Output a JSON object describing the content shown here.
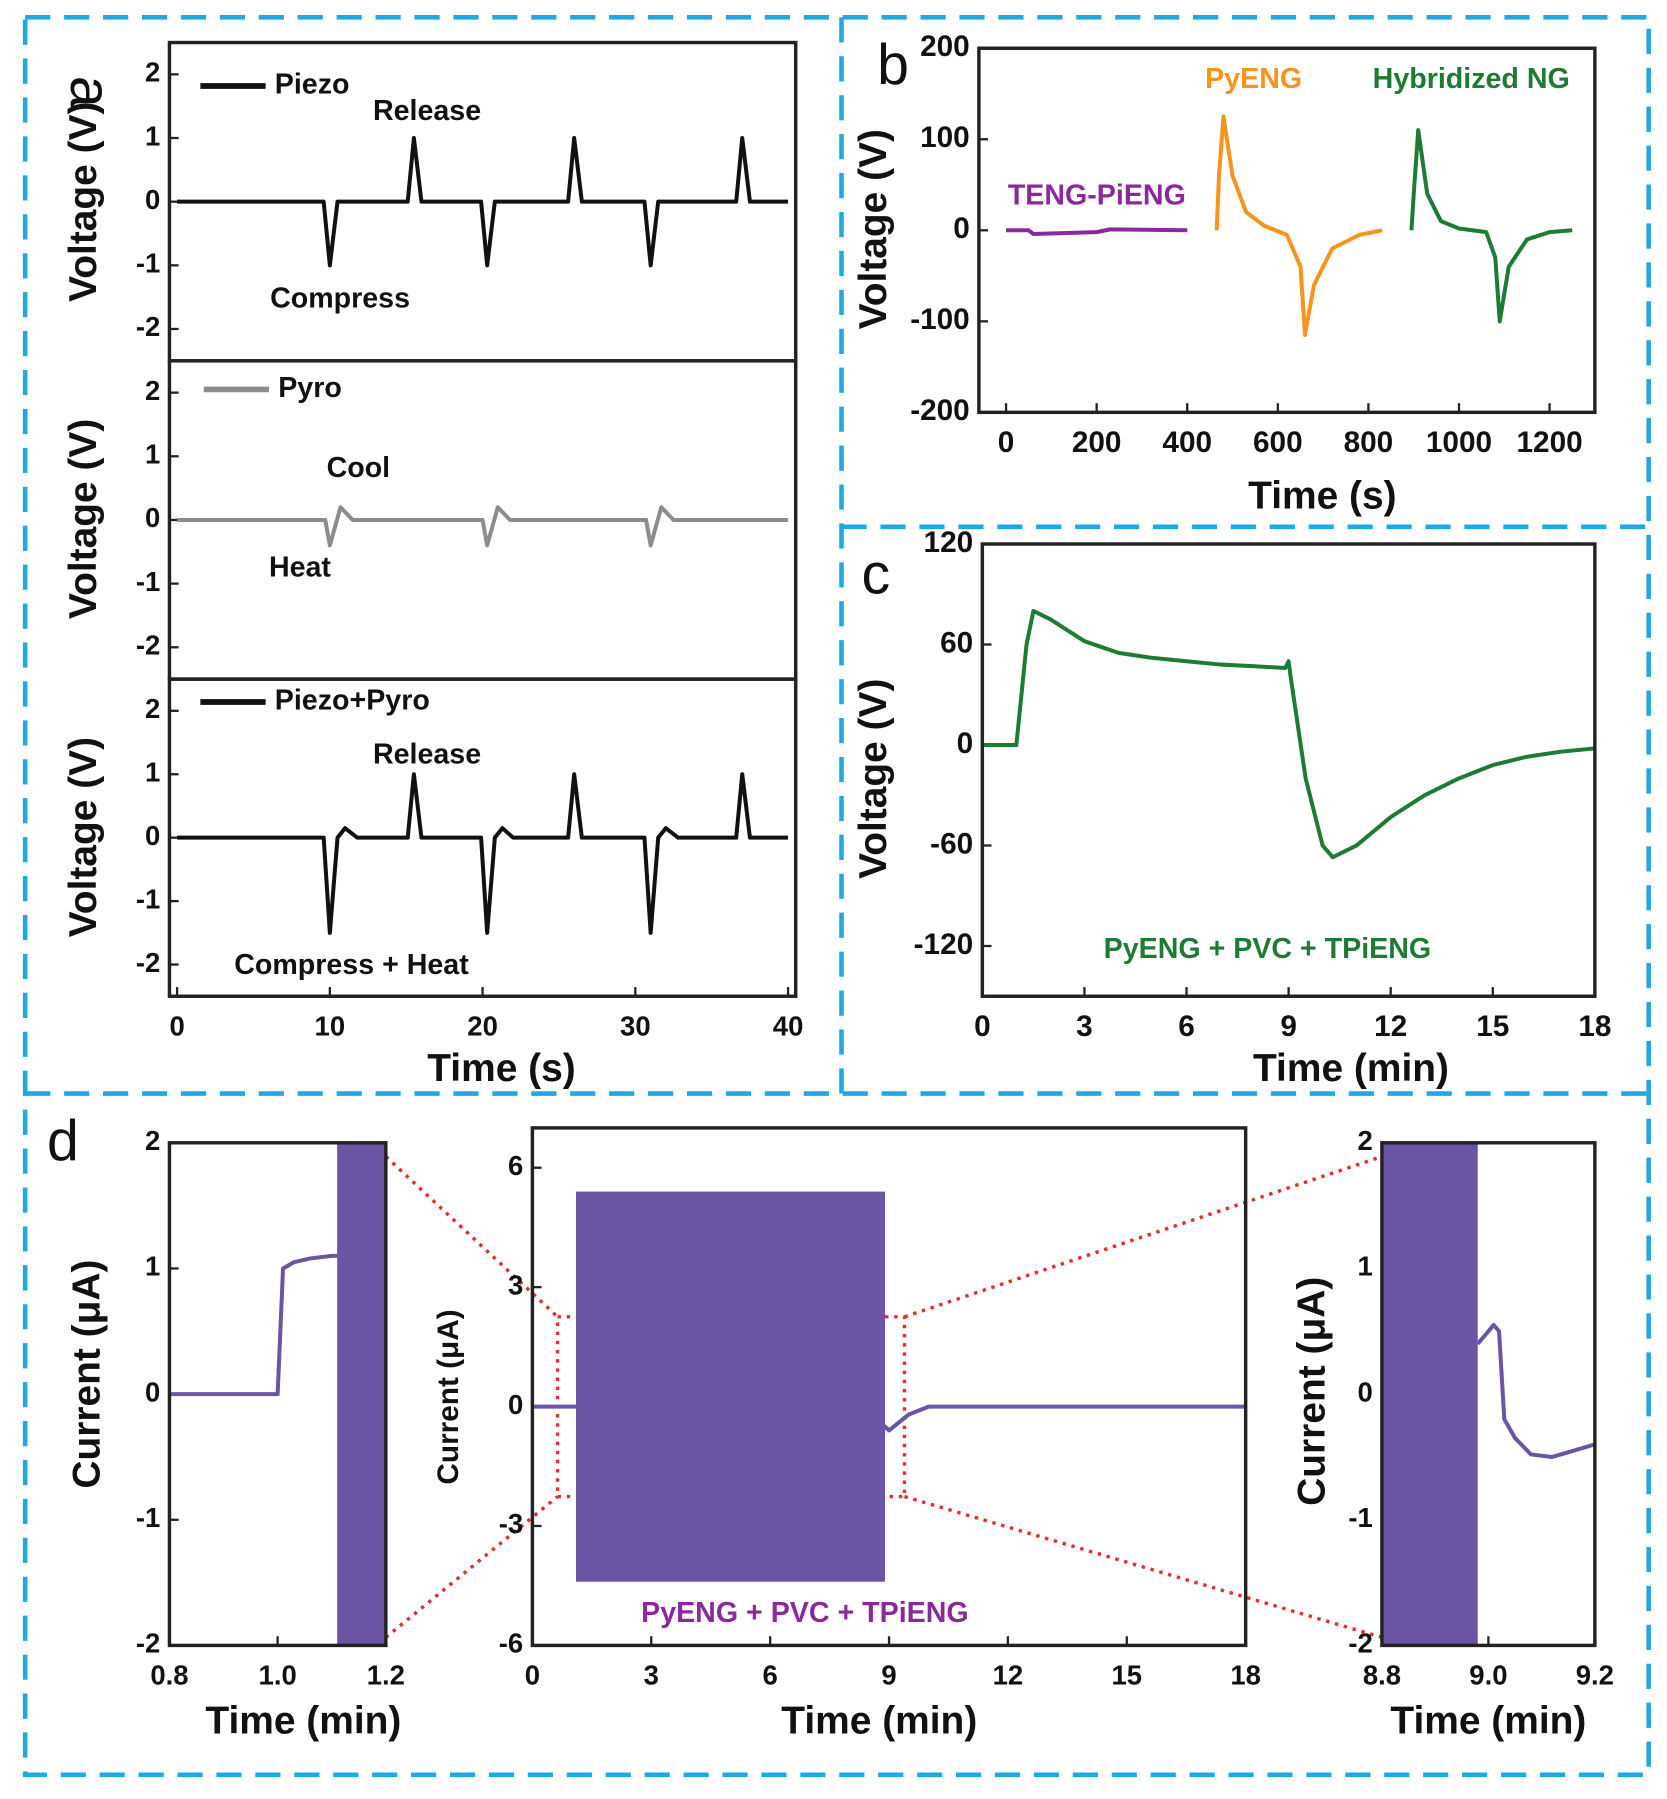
{
  "chart_data": [
    {
      "type": "line",
      "panel_label": "a",
      "ylabel": "Voltage (V)",
      "xlim": [
        -0.5,
        40.5
      ],
      "ylim": [
        -2.5,
        2.5
      ],
      "yticks": [
        -2,
        -1,
        0,
        1,
        2
      ],
      "series": [
        {
          "name": "Piezo",
          "color": "#111111",
          "x": [
            0,
            9.6,
            10,
            10.5,
            15.1,
            15.5,
            16,
            19.9,
            20.3,
            20.8,
            25.6,
            26,
            26.5,
            30.6,
            31,
            31.5,
            36.6,
            37,
            37.5,
            40
          ],
          "values": [
            0,
            0,
            -1,
            0,
            0,
            1,
            0,
            0,
            -1,
            0,
            0,
            1,
            0,
            0,
            -1,
            0,
            0,
            1,
            0,
            0
          ]
        }
      ],
      "annotations": [
        "Release",
        "Compress"
      ],
      "annotation_color": "#111111"
    },
    {
      "type": "line",
      "ylabel": "Voltage (V)",
      "xlim": [
        -0.5,
        40.5
      ],
      "ylim": [
        -2.5,
        2.5
      ],
      "yticks": [
        -2,
        -1,
        0,
        1,
        2
      ],
      "series": [
        {
          "name": "Pyro",
          "color": "#8c8c8c",
          "x": [
            0,
            9.7,
            10,
            10.7,
            11.5,
            20,
            20.3,
            21,
            21.8,
            30.7,
            31,
            31.7,
            32.5,
            40
          ],
          "values": [
            0,
            0,
            -0.4,
            0.2,
            0,
            0,
            -0.4,
            0.2,
            0,
            0,
            -0.4,
            0.2,
            0,
            0
          ]
        }
      ],
      "annotations": [
        "Cool",
        "Heat"
      ],
      "annotation_color": "#111111"
    },
    {
      "type": "line",
      "ylabel": "Voltage (V)",
      "xlabel": "Time (s)",
      "xlim": [
        -0.5,
        40.5
      ],
      "ylim": [
        -2.5,
        2.5
      ],
      "yticks": [
        -2,
        -1,
        0,
        1,
        2
      ],
      "xticks": [
        0,
        10,
        20,
        30,
        40
      ],
      "series": [
        {
          "name": "Piezo+Pyro",
          "color": "#111111",
          "x": [
            0,
            9.6,
            10,
            10.5,
            11,
            11.8,
            15.1,
            15.5,
            16,
            19.9,
            20.3,
            20.8,
            21.3,
            22,
            25.6,
            26,
            26.5,
            30.6,
            31,
            31.5,
            32,
            32.8,
            36.6,
            37,
            37.5,
            40
          ],
          "values": [
            0,
            0,
            -1.5,
            0,
            0.15,
            0,
            0,
            1,
            0,
            0,
            -1.5,
            0,
            0.15,
            0,
            0,
            1,
            0,
            0,
            -1.5,
            0,
            0.15,
            0,
            0,
            1,
            0,
            0
          ]
        }
      ],
      "annotations": [
        "Release",
        "Compress + Heat"
      ],
      "annotation_color": "#111111"
    },
    {
      "type": "line",
      "panel_label": "b",
      "ylabel": "Voltage (V)",
      "xlabel": "Time (s)",
      "xlim": [
        -60,
        1300
      ],
      "ylim": [
        -200,
        200
      ],
      "xticks": [
        0,
        200,
        400,
        600,
        800,
        1000,
        1200
      ],
      "yticks": [
        -200,
        -100,
        0,
        100,
        200
      ],
      "series": [
        {
          "name": "TENG-PiENG",
          "color": "#8a2a9a",
          "x": [
            0,
            50,
            60,
            200,
            230,
            400
          ],
          "values": [
            0,
            0,
            -4,
            -2,
            1,
            0
          ]
        },
        {
          "name": "PyENG",
          "color": "#f7941d",
          "x": [
            465,
            470,
            480,
            500,
            530,
            570,
            620,
            650,
            660,
            680,
            720,
            780,
            830
          ],
          "values": [
            0,
            60,
            125,
            60,
            20,
            5,
            -5,
            -40,
            -115,
            -60,
            -20,
            -5,
            0
          ]
        },
        {
          "name": "Hybridized NG",
          "color": "#1e7b34",
          "x": [
            895,
            900,
            910,
            930,
            960,
            1000,
            1060,
            1080,
            1090,
            1110,
            1150,
            1200,
            1250
          ],
          "values": [
            0,
            40,
            110,
            40,
            10,
            2,
            -2,
            -30,
            -100,
            -40,
            -10,
            -2,
            0
          ]
        }
      ]
    },
    {
      "type": "line",
      "panel_label": "c",
      "ylabel": "Voltage (V)",
      "xlabel": "Time (min)",
      "xlim": [
        0,
        18
      ],
      "ylim": [
        -150,
        120
      ],
      "xticks": [
        0,
        3,
        6,
        9,
        12,
        15,
        18
      ],
      "yticks": [
        -120,
        -60,
        0,
        60,
        120
      ],
      "series": [
        {
          "color": "#1e7b34",
          "x": [
            0,
            1,
            1.3,
            1.5,
            2,
            3,
            4,
            5,
            6,
            7,
            8,
            8.9,
            9,
            9.05,
            9.5,
            10,
            10.3,
            11,
            12,
            13,
            14,
            15,
            16,
            17,
            18
          ],
          "values": [
            0,
            0,
            60,
            80,
            75,
            62,
            55,
            52,
            50,
            48,
            47,
            46,
            50,
            42,
            -20,
            -60,
            -67,
            -60,
            -43,
            -30,
            -20,
            -12,
            -7,
            -4,
            -2
          ]
        }
      ],
      "annotations": [
        "PyENG + PVC + TPiENG"
      ],
      "annotation_color": "#1e7b34"
    },
    {
      "type": "line",
      "panel_label": "d",
      "ylabel": "Current (μA)",
      "xlabel": "Time (min)",
      "xlim": [
        0.8,
        1.2
      ],
      "ylim": [
        -2,
        2
      ],
      "xticks": [
        0.8,
        {
          "value": 1,
          "label": "1.0"
        },
        1.2
      ],
      "yticks": [
        -2,
        -1,
        0,
        1,
        2
      ],
      "series": [
        {
          "color": "#6a54a3",
          "x": [
            0.8,
            1.0,
            1.01,
            1.03,
            1.06,
            1.1,
            1.11
          ],
          "values": [
            0,
            0,
            1,
            1.05,
            1.08,
            1.1,
            1.1
          ]
        }
      ],
      "band": {
        "color": "#6a54a3",
        "x": [
          1.11,
          1.2
        ],
        "low": -2,
        "high": 2
      }
    },
    {
      "type": "line",
      "ylabel": "Current (μA)",
      "xlabel": "Time (min)",
      "xlim": [
        0,
        18
      ],
      "ylim": [
        -6,
        7
      ],
      "xticks": [
        0,
        3,
        6,
        9,
        12,
        15,
        18
      ],
      "yticks": [
        -6,
        -3,
        0,
        3,
        6
      ],
      "series": [
        {
          "color": "#6a54a3",
          "x": [
            0,
            1.1,
            8.9,
            9,
            9.5,
            10,
            12,
            18
          ],
          "values": [
            0,
            0,
            -0.5,
            -0.6,
            -0.2,
            0,
            0,
            0
          ]
        }
      ],
      "band": {
        "color": "#6a54a3",
        "x": [
          1.1,
          8.9
        ],
        "low": -4.4,
        "high": 5.4
      },
      "annotations": [
        "PyENG + PVC + TPiENG"
      ],
      "annotation_color": "#8a2a9a"
    },
    {
      "type": "line",
      "ylabel": "Current (μA)",
      "xlabel": "Time (min)",
      "xlim": [
        8.8,
        9.2
      ],
      "ylim": [
        -2,
        2
      ],
      "xticks": [
        8.8,
        {
          "value": 9,
          "label": "9.0"
        },
        9.2
      ],
      "yticks": [
        -2,
        -1,
        0,
        1,
        2
      ],
      "series": [
        {
          "color": "#6a54a3",
          "x": [
            8.98,
            9.0,
            9.01,
            9.02,
            9.03,
            9.05,
            9.08,
            9.12,
            9.16,
            9.2
          ],
          "values": [
            0.4,
            0.5,
            0.55,
            0.5,
            -0.2,
            -0.35,
            -0.48,
            -0.5,
            -0.45,
            -0.4
          ]
        }
      ],
      "band": {
        "color": "#6a54a3",
        "x": [
          8.8,
          8.98
        ],
        "low": -2,
        "high": 2
      }
    }
  ]
}
